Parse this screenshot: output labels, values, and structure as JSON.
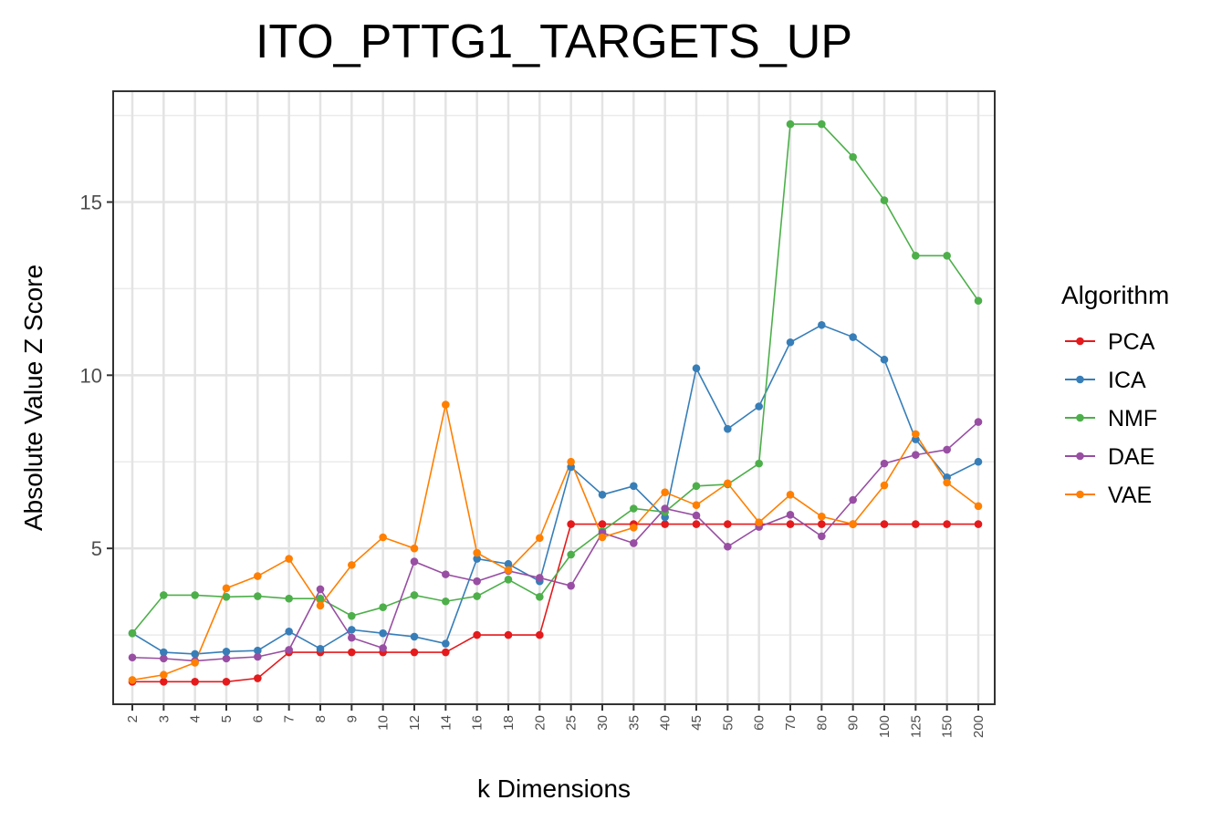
{
  "chart_data": {
    "type": "line",
    "title": "ITO_PTTG1_TARGETS_UP",
    "xlabel": "k Dimensions",
    "ylabel": "Absolute Value Z Score",
    "categories": [
      "2",
      "3",
      "4",
      "5",
      "6",
      "7",
      "8",
      "9",
      "10",
      "12",
      "14",
      "16",
      "18",
      "20",
      "25",
      "30",
      "35",
      "40",
      "45",
      "50",
      "60",
      "70",
      "80",
      "90",
      "100",
      "125",
      "150",
      "200"
    ],
    "ylim": [
      0.5,
      18.2
    ],
    "yticks": [
      5,
      10,
      15
    ],
    "grid": true,
    "legend": {
      "title": "Algorithm",
      "position": "right"
    },
    "series": [
      {
        "name": "PCA",
        "color": "#e41a1c",
        "values": [
          1.15,
          1.15,
          1.15,
          1.15,
          1.25,
          2.0,
          2.0,
          2.0,
          2.0,
          2.0,
          2.0,
          2.5,
          2.5,
          2.5,
          5.7,
          5.7,
          5.7,
          5.7,
          5.7,
          5.7,
          5.7,
          5.7,
          5.7,
          5.7,
          5.7,
          5.7,
          5.7,
          5.7
        ]
      },
      {
        "name": "ICA",
        "color": "#377eb8",
        "values": [
          2.55,
          2.0,
          1.95,
          2.02,
          2.05,
          2.6,
          2.1,
          2.65,
          2.55,
          2.45,
          2.25,
          4.7,
          4.55,
          4.05,
          7.35,
          6.55,
          6.8,
          5.9,
          10.2,
          8.45,
          9.1,
          10.95,
          11.45,
          11.1,
          10.45,
          8.15,
          7.05,
          7.5
        ]
      },
      {
        "name": "NMF",
        "color": "#4daf4a",
        "values": [
          2.55,
          3.65,
          3.65,
          3.6,
          3.62,
          3.55,
          3.55,
          3.05,
          3.3,
          3.65,
          3.47,
          3.62,
          4.1,
          3.6,
          4.82,
          5.5,
          6.15,
          6.05,
          6.8,
          6.85,
          7.45,
          17.25,
          17.25,
          16.3,
          15.05,
          13.45,
          13.45,
          12.15
        ]
      },
      {
        "name": "DAE",
        "color": "#984ea3",
        "values": [
          1.85,
          1.82,
          1.75,
          1.82,
          1.87,
          2.07,
          3.82,
          2.42,
          2.12,
          4.62,
          4.25,
          4.05,
          4.35,
          4.15,
          3.92,
          5.45,
          5.15,
          6.15,
          5.95,
          5.05,
          5.62,
          5.97,
          5.35,
          6.4,
          7.45,
          7.7,
          7.85,
          8.65
        ]
      },
      {
        "name": "VAE",
        "color": "#ff7f00",
        "values": [
          1.2,
          1.35,
          1.7,
          3.85,
          4.2,
          4.7,
          3.35,
          4.52,
          5.32,
          5.0,
          9.15,
          4.87,
          4.37,
          5.3,
          7.5,
          5.32,
          5.6,
          6.62,
          6.25,
          6.88,
          5.75,
          6.55,
          5.92,
          5.7,
          6.82,
          8.3,
          6.9,
          6.22
        ]
      }
    ]
  }
}
